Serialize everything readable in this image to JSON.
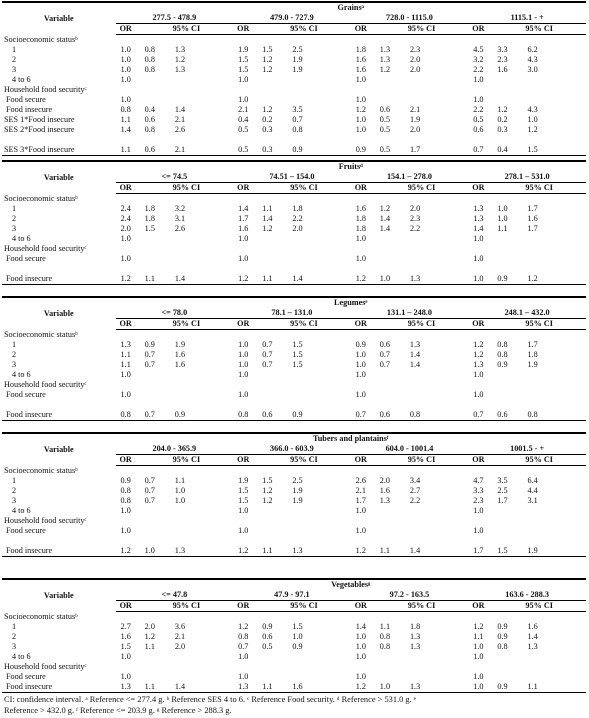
{
  "var_header": "Variable",
  "or_label": "OR",
  "ci_label": "95% CI",
  "sections": [
    {
      "title": "Grainsᵃ",
      "ranges": [
        "277.5 - 478.9",
        "479.0 - 727.9",
        "728.0 - 1115.0",
        "1115.1 - +"
      ],
      "rows": [
        {
          "label": "Socioeconomic statusᵇ",
          "style": "lbl",
          "vals": [
            "",
            "",
            "",
            "",
            "",
            "",
            "",
            "",
            "",
            "",
            "",
            ""
          ]
        },
        {
          "label": "1",
          "style": "sub2",
          "vals": [
            "1.0",
            "0.8",
            "1.3",
            "1.9",
            "1.5",
            "2.5",
            "1.8",
            "1.3",
            "2.3",
            "4.5",
            "3.3",
            "6.2"
          ]
        },
        {
          "label": "2",
          "style": "sub2",
          "vals": [
            "1.0",
            "0.8",
            "1.2",
            "1.5",
            "1.2",
            "1.9",
            "1.6",
            "1.3",
            "2.0",
            "3.2",
            "2.3",
            "4.3"
          ]
        },
        {
          "label": "3",
          "style": "sub2",
          "vals": [
            "1.0",
            "0.8",
            "1.3",
            "1.5",
            "1.2",
            "1.9",
            "1.6",
            "1.2",
            "2.0",
            "2.2",
            "1.6",
            "3.0"
          ]
        },
        {
          "label": "4 to 6",
          "style": "sub2",
          "vals": [
            "1.0",
            "",
            "",
            "1.0",
            "",
            "",
            "1.0",
            "",
            "",
            "1.0",
            "",
            ""
          ]
        },
        {
          "label": "Household food securityᶜ",
          "style": "lbl",
          "vals": [
            "",
            "",
            "",
            "",
            "",
            "",
            "",
            "",
            "",
            "",
            "",
            ""
          ]
        },
        {
          "label": "Food secure",
          "style": "sub",
          "vals": [
            "1.0",
            "",
            "",
            "1.0",
            "",
            "",
            "1.0",
            "",
            "",
            "1.0",
            "",
            ""
          ]
        },
        {
          "label": "Food insecure",
          "style": "sub",
          "vals": [
            "0.8",
            "0.4",
            "1.4",
            "2.1",
            "1.2",
            "3.5",
            "1.2",
            "0.6",
            "2.1",
            "2.2",
            "1.2",
            "4.3"
          ]
        },
        {
          "label": "SES 1*Food insecure",
          "style": "lbl",
          "vals": [
            "1.1",
            "0.6",
            "2.1",
            "0.4",
            "0.2",
            "0.7",
            "1.0",
            "0.5",
            "1.9",
            "0.5",
            "0.2",
            "1.0"
          ]
        },
        {
          "label": "SES 2*Food insecure",
          "style": "lbl",
          "vals": [
            "1.4",
            "0.8",
            "2.6",
            "0.5",
            "0.3",
            "0.8",
            "1.0",
            "0.5",
            "2.0",
            "0.6",
            "0.3",
            "1.2"
          ]
        },
        {
          "label": "",
          "style": "lbl",
          "vals": [
            "",
            "",
            "",
            "",
            "",
            "",
            "",
            "",
            "",
            "",
            "",
            ""
          ]
        },
        {
          "label": "SES 3*Food insecure",
          "style": "lbl",
          "vals": [
            "1.1",
            "0.6",
            "2.1",
            "0.5",
            "0.3",
            "0.9",
            "0.9",
            "0.5",
            "1.7",
            "0.7",
            "0.4",
            "1.5"
          ]
        }
      ]
    },
    {
      "title": "Fruitsᵈ",
      "ranges": [
        "<= 74.5",
        "74.51 – 154.0",
        "154.1 – 278.0",
        "278.1 – 531.0"
      ],
      "rows": [
        {
          "label": "Socioeconomic statusᵇ",
          "style": "lbl",
          "vals": [
            "",
            "",
            "",
            "",
            "",
            "",
            "",
            "",
            "",
            "",
            "",
            ""
          ]
        },
        {
          "label": "1",
          "style": "sub2",
          "vals": [
            "2.4",
            "1.8",
            "3.2",
            "1.4",
            "1.1",
            "1.8",
            "1.6",
            "1.2",
            "2.0",
            "1.3",
            "1.0",
            "1.7"
          ]
        },
        {
          "label": "2",
          "style": "sub2",
          "vals": [
            "2.4",
            "1.8",
            "3.1",
            "1.7",
            "1.4",
            "2.2",
            "1.8",
            "1.4",
            "2.3",
            "1.3",
            "1.0",
            "1.6"
          ]
        },
        {
          "label": "3",
          "style": "sub2",
          "vals": [
            "2.0",
            "1.5",
            "2.6",
            "1.6",
            "1.2",
            "2.0",
            "1.8",
            "1.4",
            "2.2",
            "1.4",
            "1.1",
            "1.7"
          ]
        },
        {
          "label": "4 to 6",
          "style": "sub2",
          "vals": [
            "1.0",
            "",
            "",
            "1.0",
            "",
            "",
            "1.0",
            "",
            "",
            "1.0",
            "",
            ""
          ]
        },
        {
          "label": "Household food securityᶜ",
          "style": "lbl",
          "vals": [
            "",
            "",
            "",
            "",
            "",
            "",
            "",
            "",
            "",
            "",
            "",
            ""
          ]
        },
        {
          "label": "Food secure",
          "style": "sub",
          "vals": [
            "1.0",
            "",
            "",
            "1.0",
            "",
            "",
            "1.0",
            "",
            "",
            "1.0",
            "",
            ""
          ]
        },
        {
          "label": "",
          "style": "lbl",
          "vals": [
            "",
            "",
            "",
            "",
            "",
            "",
            "",
            "",
            "",
            "",
            "",
            ""
          ]
        },
        {
          "label": "Food insecure",
          "style": "sub",
          "vals": [
            "1.2",
            "1.1",
            "1.4",
            "1.2",
            "1.1",
            "1.4",
            "1.2",
            "1.0",
            "1.3",
            "1.0",
            "0.9",
            "1.2"
          ]
        }
      ]
    },
    {
      "title": "Legumesᵉ",
      "ranges": [
        "<= 78.0",
        "78.1 – 131.0",
        "131.1 – 248.0",
        "248.1 – 432.0"
      ],
      "rows": [
        {
          "label": "Socioeconomic statusᵇ",
          "style": "lbl",
          "vals": [
            "",
            "",
            "",
            "",
            "",
            "",
            "",
            "",
            "",
            "",
            "",
            ""
          ]
        },
        {
          "label": "1",
          "style": "sub2",
          "vals": [
            "1.3",
            "0.9",
            "1.9",
            "1.0",
            "0.7",
            "1.5",
            "0.9",
            "0.6",
            "1.3",
            "1.2",
            "0.8",
            "1.7"
          ]
        },
        {
          "label": "2",
          "style": "sub2",
          "vals": [
            "1.1",
            "0.7",
            "1.6",
            "1.0",
            "0.7",
            "1.5",
            "1.0",
            "0.7",
            "1.4",
            "1.2",
            "0.8",
            "1.8"
          ]
        },
        {
          "label": "3",
          "style": "sub2",
          "vals": [
            "1.1",
            "0.7",
            "1.6",
            "1.0",
            "0.7",
            "1.5",
            "1.0",
            "0.7",
            "1.4",
            "1.3",
            "0.9",
            "1.9"
          ]
        },
        {
          "label": "4 to 6",
          "style": "sub2",
          "vals": [
            "1.0",
            "",
            "",
            "1.0",
            "",
            "",
            "1.0",
            "",
            "",
            "1.0",
            "",
            ""
          ]
        },
        {
          "label": "Household food securityᶜ",
          "style": "lbl",
          "vals": [
            "",
            "",
            "",
            "",
            "",
            "",
            "",
            "",
            "",
            "",
            "",
            ""
          ]
        },
        {
          "label": "Food secure",
          "style": "sub",
          "vals": [
            "1.0",
            "",
            "",
            "1.0",
            "",
            "",
            "1.0",
            "",
            "",
            "1.0",
            "",
            ""
          ]
        },
        {
          "label": "",
          "style": "lbl",
          "vals": [
            "",
            "",
            "",
            "",
            "",
            "",
            "",
            "",
            "",
            "",
            "",
            ""
          ]
        },
        {
          "label": "Food insecure",
          "style": "sub",
          "vals": [
            "0.8",
            "0.7",
            "0.9",
            "0.8",
            "0.6",
            "0.9",
            "0.7",
            "0.6",
            "0.8",
            "0.7",
            "0.6",
            "0.8"
          ]
        }
      ]
    },
    {
      "title": "Tubers and plantainsᶠ",
      "ranges": [
        "204.0 - 365.9",
        "366.0 - 603.9",
        "604.0 - 1001.4",
        "1001.5 - +"
      ],
      "rows": [
        {
          "label": "Socioeconomic statusᵇ",
          "style": "lbl",
          "vals": [
            "",
            "",
            "",
            "",
            "",
            "",
            "",
            "",
            "",
            "",
            "",
            ""
          ]
        },
        {
          "label": "1",
          "style": "sub2",
          "vals": [
            "0.9",
            "0.7",
            "1.1",
            "1.9",
            "1.5",
            "2.5",
            "2.6",
            "2.0",
            "3.4",
            "4.7",
            "3.5",
            "6.4"
          ]
        },
        {
          "label": "2",
          "style": "sub2",
          "vals": [
            "0.8",
            "0.7",
            "1.0",
            "1.5",
            "1.2",
            "1.9",
            "2.1",
            "1.6",
            "2.7",
            "3.3",
            "2.5",
            "4.4"
          ]
        },
        {
          "label": "3",
          "style": "sub2",
          "vals": [
            "0.8",
            "0.7",
            "1.0",
            "1.5",
            "1.2",
            "1.9",
            "1.7",
            "1.3",
            "2.2",
            "2.3",
            "1.7",
            "3.1"
          ]
        },
        {
          "label": "4 to 6",
          "style": "sub2",
          "vals": [
            "1.0",
            "",
            "",
            "1.0",
            "",
            "",
            "1.0",
            "",
            "",
            "1.0",
            "",
            ""
          ]
        },
        {
          "label": "Household food securityᶜ",
          "style": "lbl",
          "vals": [
            "",
            "",
            "",
            "",
            "",
            "",
            "",
            "",
            "",
            "",
            "",
            ""
          ]
        },
        {
          "label": "Food secure",
          "style": "sub",
          "vals": [
            "1.0",
            "",
            "",
            "1.0",
            "",
            "",
            "1.0",
            "",
            "",
            "1.0",
            "",
            ""
          ]
        },
        {
          "label": "",
          "style": "lbl",
          "vals": [
            "",
            "",
            "",
            "",
            "",
            "",
            "",
            "",
            "",
            "",
            "",
            ""
          ]
        },
        {
          "label": "Food insecure",
          "style": "sub",
          "vals": [
            "1.2",
            "1.0",
            "1.3",
            "1.2",
            "1.1",
            "1.3",
            "1.2",
            "1.1",
            "1.4",
            "1.7",
            "1.5",
            "1.9"
          ]
        }
      ]
    },
    {
      "title": "Vegetablesᵍ",
      "ranges": [
        "<= 47.8",
        "47.9 - 97.1",
        "97.2 - 163.5",
        "163.6 - 288.3"
      ],
      "rows": [
        {
          "label": "Socioeconomic statusᵇ",
          "style": "lbl",
          "vals": [
            "",
            "",
            "",
            "",
            "",
            "",
            "",
            "",
            "",
            "",
            "",
            ""
          ]
        },
        {
          "label": "1",
          "style": "sub2",
          "vals": [
            "2.7",
            "2.0",
            "3.6",
            "1.2",
            "0.9",
            "1.5",
            "1.4",
            "1.1",
            "1.8",
            "1.2",
            "0.9",
            "1.6"
          ]
        },
        {
          "label": "2",
          "style": "sub2",
          "vals": [
            "1.6",
            "1.2",
            "2.1",
            "0.8",
            "0.6",
            "1.0",
            "1.0",
            "0.8",
            "1.3",
            "1.1",
            "0.9",
            "1.4"
          ]
        },
        {
          "label": "3",
          "style": "sub2",
          "vals": [
            "1.5",
            "1.1",
            "2.0",
            "0.7",
            "0.5",
            "0.9",
            "1.0",
            "0.8",
            "1.3",
            "1.0",
            "0.8",
            "1.3"
          ]
        },
        {
          "label": "4 to 6",
          "style": "sub2",
          "vals": [
            "1.0",
            "",
            "",
            "1.0",
            "",
            "",
            "1.0",
            "",
            "",
            "1.0",
            "",
            ""
          ]
        },
        {
          "label": "Household food securityᶜ",
          "style": "lbl",
          "vals": [
            "",
            "",
            "",
            "",
            "",
            "",
            "",
            "",
            "",
            "",
            "",
            ""
          ]
        },
        {
          "label": "Food secure",
          "style": "sub",
          "vals": [
            "1.0",
            "",
            "",
            "1.0",
            "",
            "",
            "1.0",
            "",
            "",
            "1.0",
            "",
            ""
          ]
        },
        {
          "label": "Food insecure",
          "style": "sub",
          "vals": [
            "1.3",
            "1.1",
            "1.4",
            "1.3",
            "1.1",
            "1.6",
            "1.2",
            "1.0",
            "1.3",
            "1.0",
            "0.9",
            "1.1"
          ]
        }
      ]
    }
  ],
  "footnote_line1": "CI: confidence interval.  ᵃ Reference <= 277.4 g.  ᵇ Reference SES 4 to 6.  ᶜ Reference Food security.  ᵈ Reference > 531.0 g.  ᵉ",
  "footnote_line2": "Reference > 432.0 g.  ᶠ Reference <= 203.9 g.  ᵍ Reference > 288.3 g."
}
